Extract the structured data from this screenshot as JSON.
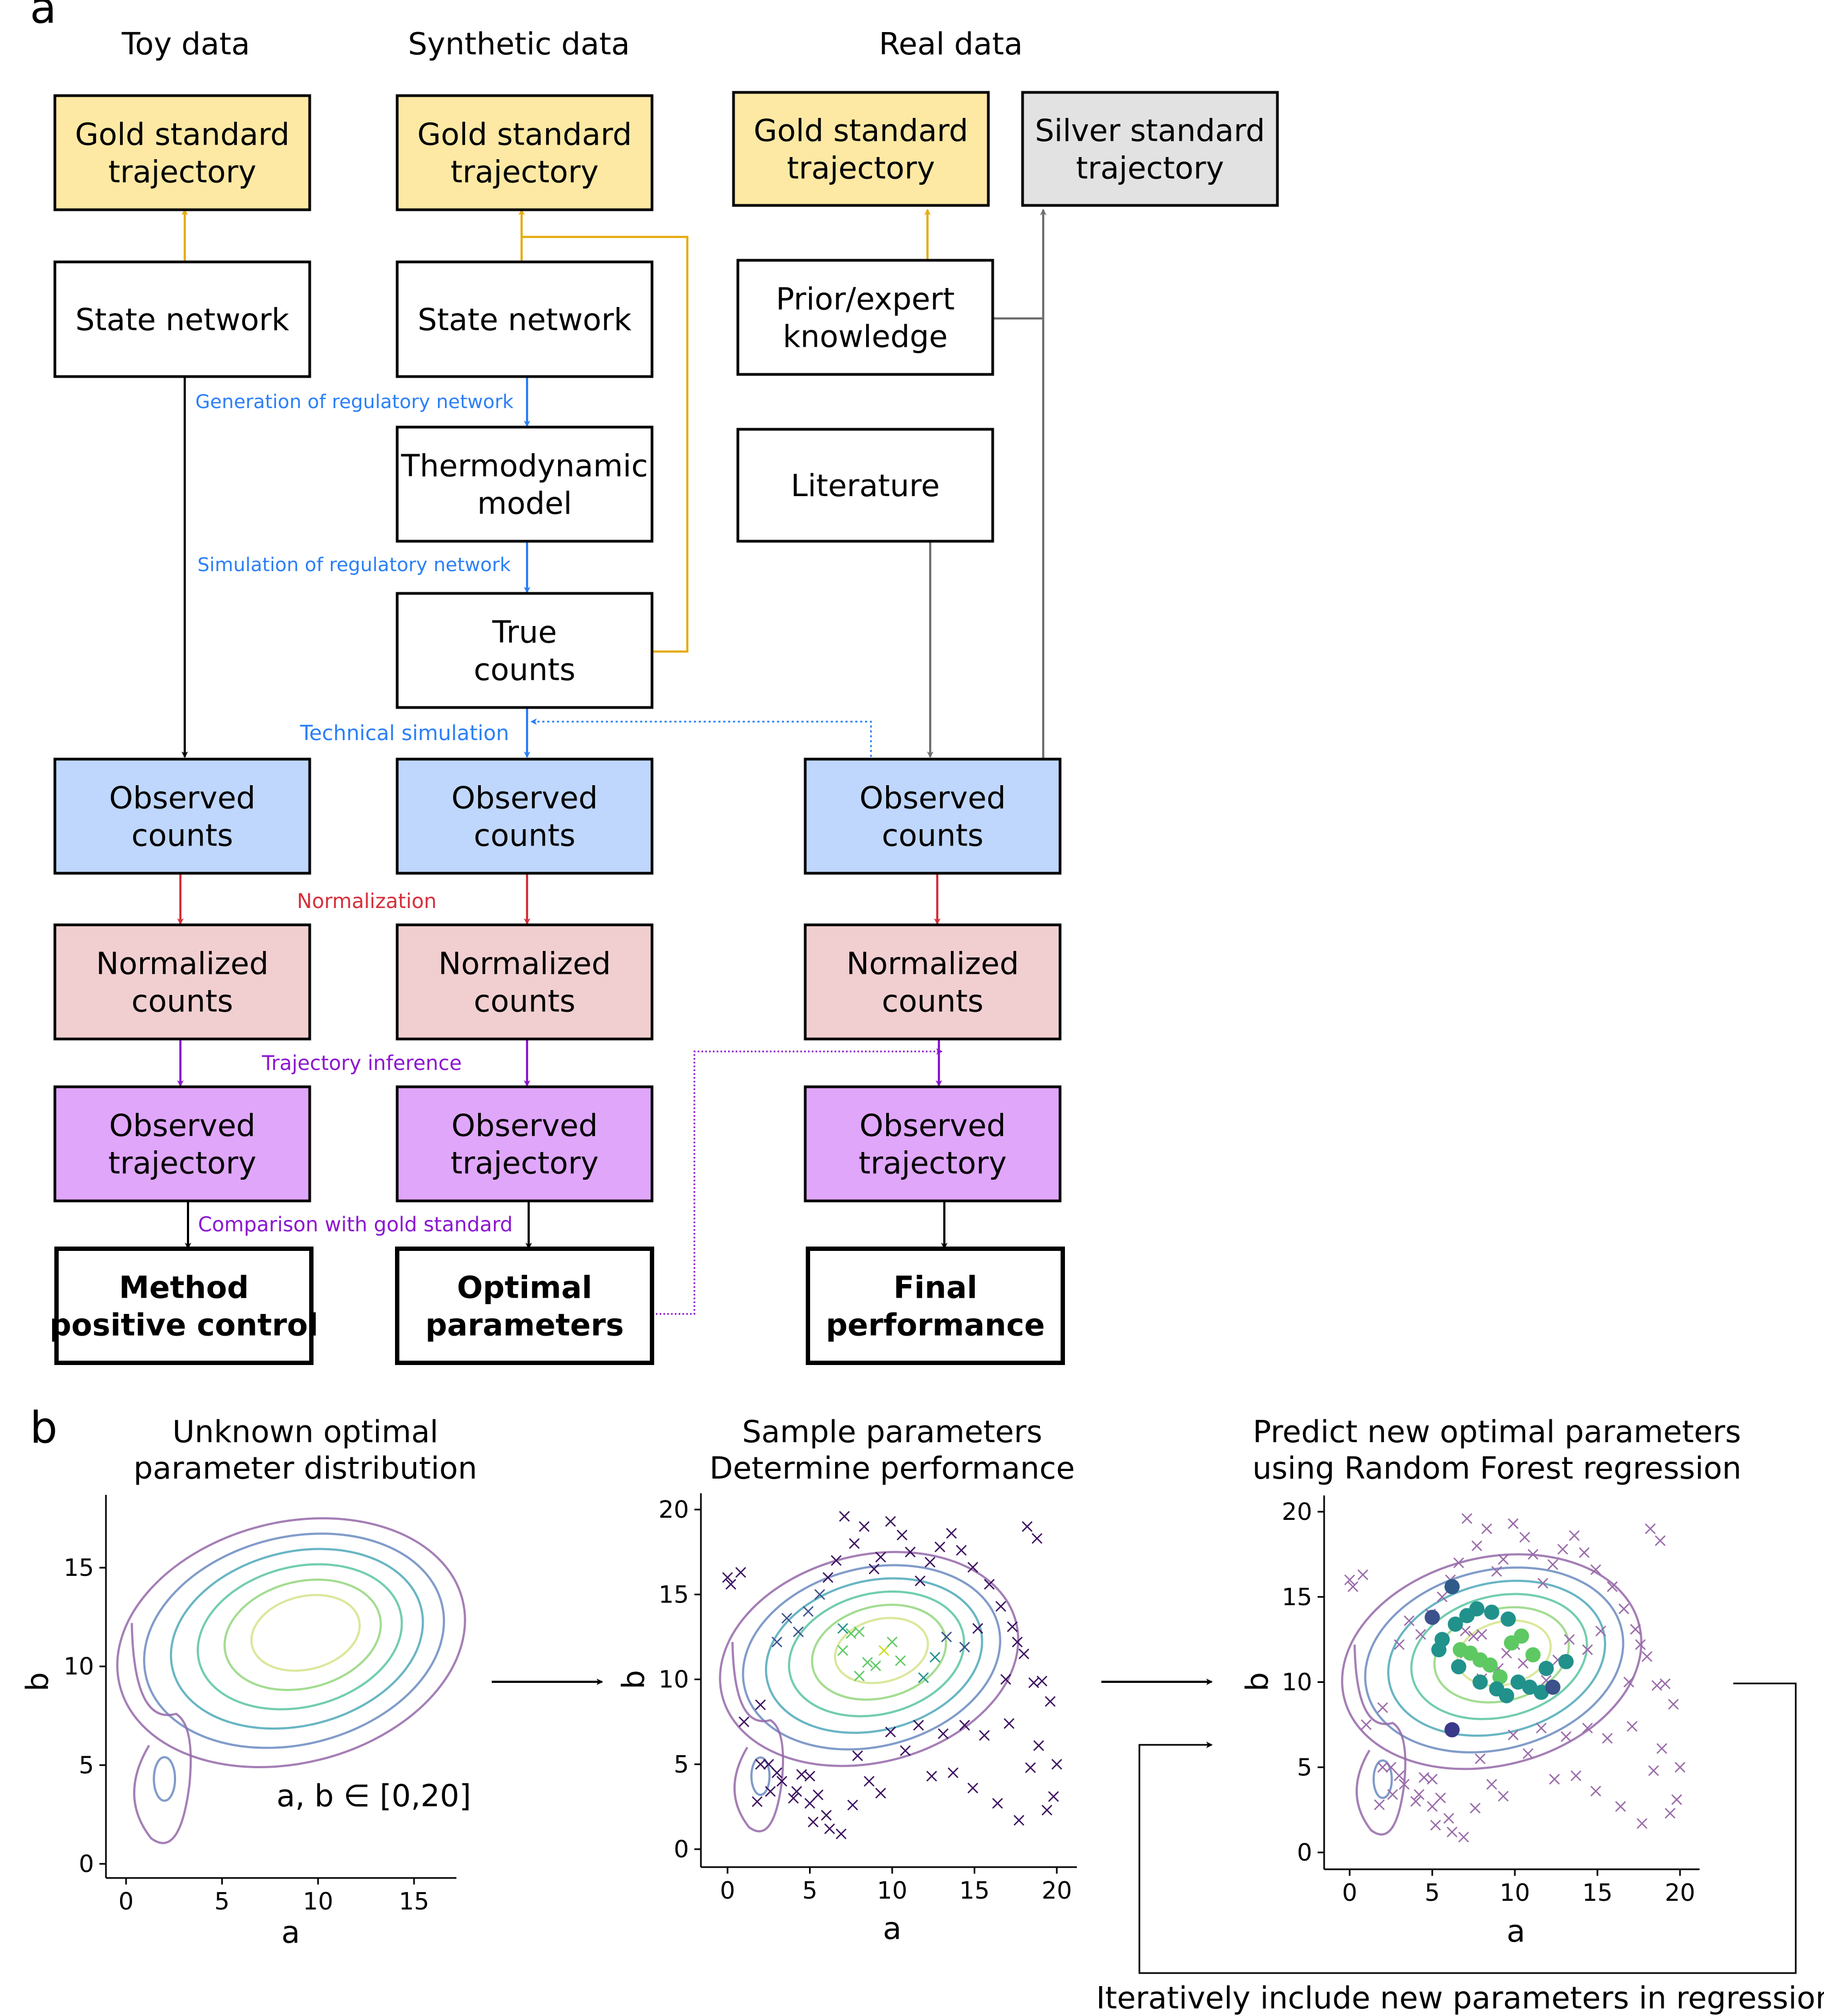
{
  "panel_a": {
    "letter": "a",
    "columns": [
      "Toy data",
      "Synthetic data",
      "Real data"
    ],
    "boxes": {
      "toy_gold": [
        "Gold standard",
        "trajectory"
      ],
      "toy_state": [
        "State network"
      ],
      "toy_observed": [
        "Observed",
        "counts"
      ],
      "toy_normalized": [
        "Normalized",
        "counts"
      ],
      "toy_trajectory": [
        "Observed",
        "trajectory"
      ],
      "toy_result": [
        "Method",
        "positive control"
      ],
      "syn_gold": [
        "Gold standard",
        "trajectory"
      ],
      "syn_state": [
        "State network"
      ],
      "syn_thermo": [
        "Thermodynamic",
        "model"
      ],
      "syn_true": [
        "True",
        "counts"
      ],
      "syn_observed": [
        "Observed",
        "counts"
      ],
      "syn_normalized": [
        "Normalized",
        "counts"
      ],
      "syn_trajectory": [
        "Observed",
        "trajectory"
      ],
      "syn_result": [
        "Optimal",
        "parameters"
      ],
      "real_gold": [
        "Gold standard",
        "trajectory"
      ],
      "real_silver": [
        "Silver standard",
        "trajectory"
      ],
      "real_prior": [
        "Prior/expert",
        "knowledge"
      ],
      "real_literature": [
        "Literature"
      ],
      "real_observed": [
        "Observed",
        "counts"
      ],
      "real_normalized": [
        "Normalized",
        "counts"
      ],
      "real_trajectory": [
        "Observed",
        "trajectory"
      ],
      "real_result": [
        "Final",
        "performance"
      ]
    },
    "annotations": {
      "generation": "Generation of regulatory network",
      "simulation": "Simulation of regulatory network",
      "technical": "Technical simulation",
      "normalization": "Normalization",
      "trajectory_inference": "Trajectory inference",
      "comparison": "Comparison with gold standard"
    },
    "colors": {
      "gold": "#FDE9A3",
      "silver": "#E2E2E2",
      "observed": "#BFD7FD",
      "normalized": "#F1CFD0",
      "trajectory": "#E0A6FA",
      "gold_arrow": "#E5AD10",
      "blue_arrow": "#2A7FF7",
      "red_arrow": "#D62F3B",
      "purple_arrow": "#8B16D0",
      "gray_arrow": "#707070"
    }
  },
  "panel_b": {
    "letter": "b",
    "plot1": {
      "title": [
        "Unknown optimal",
        "parameter distribution"
      ],
      "xlabel": "a",
      "ylabel": "b",
      "xticks": [
        "0",
        "5",
        "10",
        "15"
      ],
      "yticks": [
        "0",
        "5",
        "10",
        "15"
      ],
      "note": "a, b ∈ [0,20]"
    },
    "plot2": {
      "title": [
        "Sample parameters",
        "Determine performance"
      ],
      "xlabel": "a",
      "ylabel": "b",
      "xticks": [
        "0",
        "5",
        "10",
        "15",
        "20"
      ],
      "yticks": [
        "0",
        "5",
        "10",
        "15",
        "20"
      ]
    },
    "plot3": {
      "title": [
        "Predict new optimal parameters",
        "using Random Forest regression"
      ],
      "xlabel": "a",
      "ylabel": "b",
      "xticks": [
        "0",
        "5",
        "10",
        "15",
        "20"
      ],
      "yticks": [
        "0",
        "5",
        "10",
        "15",
        "20"
      ]
    },
    "loop_label": "Iteratively include new parameters in regression"
  },
  "chart_data": [
    {
      "type": "contour",
      "name": "optimal parameter distribution",
      "xlim": [
        -1,
        17.5
      ],
      "ylim": [
        -0.5,
        18.5
      ],
      "levels": 6,
      "modes": [
        {
          "a": 9.5,
          "b": 11.8
        },
        {
          "a": 2.0,
          "b": 4.3
        }
      ],
      "colormap": [
        "#9467a8",
        "#6a8ac0",
        "#4ea8b8",
        "#58c4a0",
        "#93d67e",
        "#d2e48a"
      ]
    },
    {
      "type": "scatter",
      "marker": "x",
      "xlim": [
        -0.8,
        21.2
      ],
      "ylim": [
        -0.8,
        21.0
      ],
      "x": [
        0,
        0.2,
        0.8,
        1.0,
        2.0,
        2.5,
        3.0,
        4.0,
        4.5,
        5.0,
        5.0,
        5.5,
        6.0,
        7.0,
        7.0,
        7.5,
        8.0,
        8.5,
        8.0,
        9.0,
        9.5,
        10.0,
        10.5,
        3.0,
        2.0,
        2.6,
        1.8,
        3.3,
        4.2,
        5.2,
        6.2,
        6.9,
        7.6,
        7.9,
        8.6,
        9.3,
        9.9,
        10.8,
        11.6,
        12.4,
        13.1,
        13.7,
        14.4,
        14.9,
        15.6,
        16.4,
        17.1,
        17.7,
        18.4,
        18.9,
        19.4,
        19.8,
        20.0,
        19.6,
        18.6,
        18.0,
        17.3,
        16.6,
        15.9,
        14.9,
        14.2,
        13.6,
        12.9,
        12.3,
        11.7,
        11.1,
        10.6,
        9.9,
        9.3,
        8.9,
        8.3,
        7.7,
        7.1,
        6.6,
        6.1,
        5.6,
        4.9,
        4.3,
        3.6,
        18.2,
        18.8,
        17.6,
        19.1,
        16.9,
        15.2,
        14.4,
        13.3,
        12.6,
        11.9
      ],
      "y": [
        16.0,
        15.6,
        16.3,
        7.5,
        8.5,
        5.0,
        4.5,
        3.0,
        4.4,
        2.7,
        4.3,
        3.2,
        2.0,
        13.0,
        11.7,
        12.7,
        10.2,
        11.0,
        12.8,
        10.8,
        11.7,
        12.2,
        11.1,
        12.2,
        5.0,
        3.4,
        2.8,
        4.0,
        3.4,
        1.6,
        1.2,
        0.9,
        2.6,
        5.5,
        4.0,
        3.3,
        6.9,
        5.8,
        7.3,
        4.3,
        6.8,
        4.5,
        7.3,
        3.6,
        6.7,
        2.7,
        7.4,
        1.7,
        4.8,
        6.1,
        2.3,
        3.1,
        5.0,
        8.7,
        9.8,
        11.5,
        13.1,
        14.3,
        15.6,
        16.6,
        17.6,
        18.6,
        17.8,
        16.9,
        15.8,
        17.5,
        18.5,
        19.3,
        17.2,
        16.5,
        19.0,
        18.0,
        19.6,
        17.0,
        16.0,
        15.0,
        14.0,
        12.8,
        13.6,
        19.0,
        18.3,
        12.2,
        9.9,
        10.0,
        13.0,
        11.9,
        12.5,
        11.3,
        10.1
      ],
      "colors": "performance (dark purple = low, yellow = high)"
    },
    {
      "type": "scatter",
      "marker": "o",
      "x": [
        6.2,
        5.0,
        5.4,
        6.7,
        7.3,
        7.9,
        8.5,
        9.1,
        10.2,
        10.9,
        11.6,
        12.3,
        11.1,
        10.4,
        9.6,
        8.6,
        7.7,
        7.1,
        6.4,
        5.6,
        6.6,
        7.9,
        8.9,
        9.5,
        9.8,
        11.9,
        13.1,
        6.2
      ],
      "y": [
        15.6,
        13.8,
        11.9,
        11.9,
        11.7,
        11.3,
        11.0,
        10.3,
        10.0,
        9.7,
        9.4,
        9.7,
        11.6,
        12.7,
        13.7,
        14.1,
        14.3,
        13.9,
        13.4,
        12.5,
        10.9,
        10.0,
        9.6,
        9.2,
        12.3,
        10.8,
        11.2,
        7.2
      ],
      "colors": "predicted performance (dark blue = low, yellow = high)"
    }
  ]
}
